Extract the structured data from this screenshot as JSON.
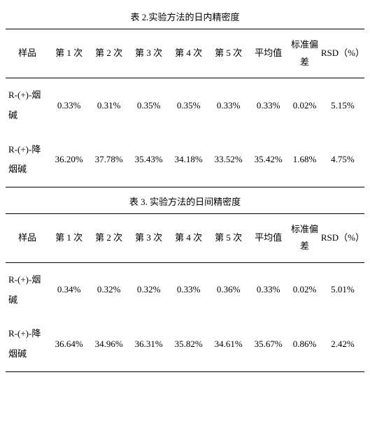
{
  "table2": {
    "title": "表 2.实验方法的日内精密度",
    "headers": [
      "样品",
      "第 1 次",
      "第 2 次",
      "第 3 次",
      "第 4 次",
      "第 5 次",
      "平均值",
      "标准偏差",
      "RSD（%）"
    ],
    "rows": [
      {
        "sample": "R-(+)-烟碱",
        "c1": "0.33%",
        "c2": "0.31%",
        "c3": "0.35%",
        "c4": "0.35%",
        "c5": "0.33%",
        "avg": "0.33%",
        "sd": "0.02%",
        "rsd": "5.15%"
      },
      {
        "sample": "R-(+)-降烟碱",
        "c1": "36.20%",
        "c2": "37.78%",
        "c3": "35.43%",
        "c4": "34.18%",
        "c5": "33.52%",
        "avg": "35.42%",
        "sd": "1.68%",
        "rsd": "4.75%"
      }
    ]
  },
  "table3": {
    "title": "表 3. 实验方法的日间精密度",
    "headers": [
      "样品",
      "第 1 次",
      "第 2 次",
      "第 3 次",
      "第 4 次",
      "第 5 次",
      "平均值",
      "标准偏差",
      "RSD（%）"
    ],
    "rows": [
      {
        "sample": "R-(+)-烟碱",
        "c1": "0.34%",
        "c2": "0.32%",
        "c3": "0.32%",
        "c4": "0.33%",
        "c5": "0.36%",
        "avg": "0.33%",
        "sd": "0.02%",
        "rsd": "5.01%"
      },
      {
        "sample": "R-(+)-降烟碱",
        "c1": "36.64%",
        "c2": "34.96%",
        "c3": "36.31%",
        "c4": "35.82%",
        "c5": "34.61%",
        "avg": "35.67%",
        "sd": "0.86%",
        "rsd": "2.42%"
      }
    ]
  }
}
